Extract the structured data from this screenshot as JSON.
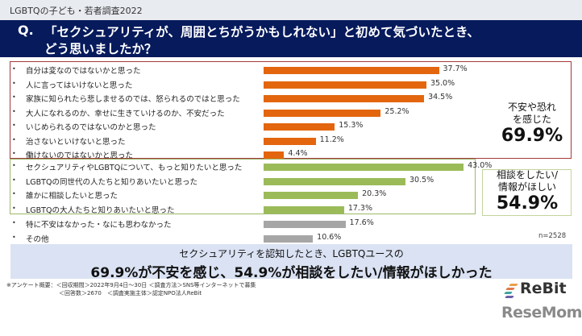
{
  "header": {
    "survey_title": "LGBTQの子ども・若者調査2022",
    "question_prefix": "Q.",
    "question_line1": "「セクシュアリティが、周囲とちがうかもしれない」と初めて気づいたとき、",
    "question_line2": "どう思いましたか？"
  },
  "colors": {
    "orange": "#e3660e",
    "green": "#9bbb59",
    "gray": "#a6a6a6",
    "navy": "#061a5c",
    "banner": "#dae2f3"
  },
  "chart_data": {
    "type": "bar",
    "orientation": "horizontal",
    "title": "「セクシュアリティが、周囲とちがうかもしれない」と初めて気づいたとき、どう思いましたか？",
    "unit": "%",
    "xlim": [
      0,
      50
    ],
    "grid": false,
    "categories": [
      "自分は変なのではないかと思った",
      "人に言ってはいけないと思った",
      "家族に知られたら悲しませるのでは、怒られるのではと思った",
      "大人になれるのか、幸せに生きていけるのか、不安だった",
      "いじめられるのではないのかと思った",
      "治さないといけないと思った",
      "働けないのではないかと思った",
      "セクシュアリティやLGBTQについて、もっと知りたいと思った",
      "LGBTQの同世代の人たちと知りあいたいと思った",
      "誰かに相談したいと思った",
      "LGBTQの大人たちと知りあいたいと思った",
      "特に不安はなかった・なにも思わなかった",
      "その他"
    ],
    "values": [
      37.7,
      35.0,
      34.5,
      25.2,
      15.3,
      11.2,
      4.4,
      43.0,
      30.5,
      20.3,
      17.3,
      17.6,
      10.6
    ],
    "labels": [
      "37.7%",
      "35.0%",
      "34.5%",
      "25.2%",
      "15.3%",
      "11.2%",
      "4.4%",
      "43.0%",
      "30.5%",
      "20.3%",
      "17.3%",
      "17.6%",
      "10.6%"
    ],
    "groups": [
      "anxiety",
      "anxiety",
      "anxiety",
      "anxiety",
      "anxiety",
      "anxiety",
      "anxiety",
      "info",
      "info",
      "info",
      "info",
      "other",
      "other"
    ],
    "sample_size": "n=2528"
  },
  "summaries": {
    "anxiety": {
      "line1": "不安や恐れ",
      "line2": "を感じた",
      "percent": "69.9%"
    },
    "info": {
      "line1": "相談をしたい/",
      "line2": "情報がほしい",
      "percent": "54.9%"
    }
  },
  "banner": {
    "line1": "セクシュアリティを認知したとき、LGBTQユースの",
    "line2": "69.9%が不安を感じ、54.9%が相談をしたい/情報がほしかった"
  },
  "footnote": {
    "line1": "※アンケート概要：＜回収期間＞2022年9月4日〜30日 ＜調査方法＞SNS等インターネットで募集",
    "line2": "＜回答数＞2670　＜調査実施主体＞認定NPO法人ReBit"
  },
  "logos": {
    "rebit": "ReBit",
    "resemom": "ReseMom"
  }
}
